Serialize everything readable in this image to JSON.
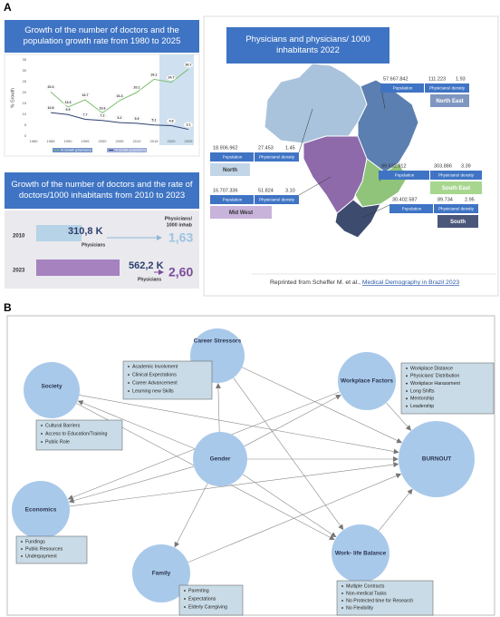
{
  "chart_data": {
    "type": "line",
    "title": "Growth of the number of doctors and the population growth rate from 1980 to 2025",
    "y_label": "% Growth",
    "x": [
      1985,
      1990,
      1995,
      2000,
      2005,
      2010,
      2015,
      2020,
      2025
    ],
    "series": [
      {
        "name": "% Growth (physicians)",
        "color": "#7cbf6b",
        "values": [
          20.3,
          13.3,
          16.7,
          10.6,
          16.3,
          20.1,
          26.1,
          24.7,
          30.7
        ]
      },
      {
        "name": "% Growth (population)",
        "color": "#2e3f6e",
        "values": [
          10.8,
          9.9,
          7.7,
          7.2,
          6.2,
          5.9,
          5.1,
          4.8,
          3.1
        ]
      }
    ],
    "xlim": [
      1980,
      2025
    ],
    "xticks": [
      1980,
      1985,
      1990,
      1995,
      2000,
      2005,
      2010,
      2015,
      2020,
      2025
    ],
    "ylim": [
      0,
      35
    ],
    "yticks": [
      0,
      5,
      10,
      15,
      20,
      25,
      30,
      35
    ]
  },
  "panel_a": {
    "label": "A",
    "doctors_title": "Growth of the number of doctors and the rate of doctors/1000 inhabitants from 2010 to 2023",
    "rate_header": [
      "Physicians/",
      "1000 inhab"
    ],
    "doctors": [
      {
        "year": "2010",
        "count": "310,8 K",
        "count_label": "Physicians",
        "rate": "1,63"
      },
      {
        "year": "2023",
        "count": "562,2 K",
        "count_label": "Physicians",
        "rate": "2,60"
      }
    ],
    "map_title": "Physicians and physicians/ 1000 inhabitants 2022",
    "regions": [
      {
        "name": "North",
        "population": "18.906.962",
        "physicians": "27.453",
        "density": "1.45",
        "population_label": "Population",
        "density_label": "Physicians/ density"
      },
      {
        "name": "North East",
        "population": "57.667.842",
        "physicians": "111.223",
        "density": "1.93",
        "population_label": "Population",
        "density_label": "Physicians/ density"
      },
      {
        "name": "Mid West",
        "population": "16.707.336",
        "physicians": "51.824",
        "density": "3.10",
        "population_label": "Population",
        "density_label": "Physicians/ density"
      },
      {
        "name": "South East",
        "population": "89.632.912",
        "physicians": "303.886",
        "density": "3.39",
        "population_label": "Population",
        "density_label": "Physicians/ density"
      },
      {
        "name": "South",
        "population": "30.402.587",
        "physicians": "89.734",
        "density": "2.95",
        "population_label": "Population",
        "density_label": "Physicians/ density"
      }
    ],
    "credit_prefix": "Reprinted from Scheffer M. et al., ",
    "credit_link": "Medical Demography in Brazil 2023"
  },
  "panel_b": {
    "label": "B",
    "nodes": [
      {
        "label": "Society",
        "items": [
          "Cultural Barriers",
          "Access to Education/Training",
          "Public Role"
        ]
      },
      {
        "label": "Career Stressors",
        "items": [
          "Academic Involvment",
          "Clinical Expectations",
          "Career Advancement",
          "Learning new Skills"
        ]
      },
      {
        "label": "Workplace Factors",
        "items": [
          "Workplace Distance",
          "Physicians' Distribution",
          "Workplace Harassment",
          "Long Shifts",
          "Mentorship",
          "Leadership"
        ]
      },
      {
        "label": "Gender",
        "items": []
      },
      {
        "label": "BURNOUT",
        "items": []
      },
      {
        "label": "Economics",
        "items": [
          "Fundings",
          "Public Resources",
          "Underpayment"
        ]
      },
      {
        "label": "Family",
        "items": [
          "Parenting",
          "Expectations",
          "Elderly Caregiving"
        ]
      },
      {
        "label": "Work- life Balance",
        "items": [
          "Multiple Contracts",
          "Non-medical Tasks",
          "No Protected time for Research",
          "No Flexibility"
        ]
      }
    ]
  }
}
